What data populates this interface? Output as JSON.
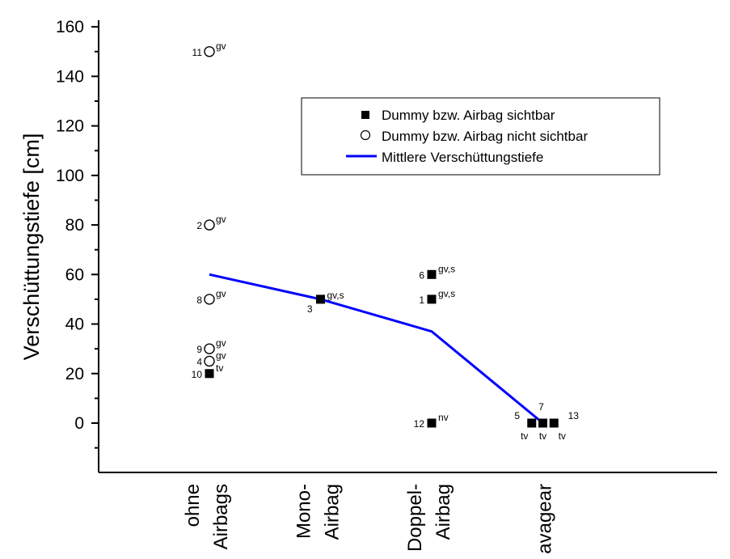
{
  "chart_data": {
    "type": "scatter",
    "ylabel": "Verschüttungstiefe [cm]",
    "xlabel": "",
    "ylim": [
      -20,
      160
    ],
    "yticks": [
      0,
      20,
      40,
      60,
      80,
      100,
      120,
      140,
      160
    ],
    "categories": [
      {
        "lines": [
          "ohne",
          "Airbags"
        ],
        "x": 1
      },
      {
        "lines": [
          "Mono-",
          "Airbag"
        ],
        "x": 2
      },
      {
        "lines": [
          "Doppel-",
          "Airbag"
        ],
        "x": 3
      },
      {
        "lines": [
          "avagear"
        ],
        "x": 4
      }
    ],
    "xlim": [
      0,
      6
    ],
    "legend": {
      "placement": "top-right",
      "entries": [
        {
          "marker": "square-filled",
          "label": "Dummy bzw. Airbag sichtbar"
        },
        {
          "marker": "circle-open",
          "label": "Dummy bzw. Airbag nicht sichtbar"
        },
        {
          "marker": "line",
          "label": "Mittlere Verschüttungstiefe"
        }
      ]
    },
    "series": [
      {
        "name": "Dummy bzw. Airbag sichtbar",
        "marker": "square-filled",
        "points": [
          {
            "x": 1,
            "y": 20,
            "id": "10",
            "tag": "tv"
          },
          {
            "x": 2,
            "y": 50,
            "id": "3",
            "tag": "gv,s"
          },
          {
            "x": 3,
            "y": 60,
            "id": "6",
            "tag": "gv,s"
          },
          {
            "x": 3,
            "y": 50,
            "id": "1",
            "tag": "gv,s"
          },
          {
            "x": 3,
            "y": 0,
            "id": "12",
            "tag": "nv"
          },
          {
            "x": 3.9,
            "y": 0,
            "id": "5",
            "tag": "tv"
          },
          {
            "x": 4.0,
            "y": 0,
            "id": "7",
            "tag": "tv"
          },
          {
            "x": 4.1,
            "y": 0,
            "id": "13",
            "tag": "tv"
          }
        ]
      },
      {
        "name": "Dummy bzw. Airbag nicht sichtbar",
        "marker": "circle-open",
        "points": [
          {
            "x": 1,
            "y": 150,
            "id": "11",
            "tag": "gv"
          },
          {
            "x": 1,
            "y": 80,
            "id": "2",
            "tag": "gv"
          },
          {
            "x": 1,
            "y": 50,
            "id": "8",
            "tag": "gv"
          },
          {
            "x": 1,
            "y": 30,
            "id": "9",
            "tag": "gv"
          },
          {
            "x": 1,
            "y": 25,
            "id": "4",
            "tag": "gv"
          }
        ]
      },
      {
        "name": "Mittlere Verschüttungstiefe",
        "marker": "line",
        "color": "#0000ff",
        "points": [
          {
            "x": 1,
            "y": 60
          },
          {
            "x": 2,
            "y": 50
          },
          {
            "x": 3,
            "y": 37
          },
          {
            "x": 4,
            "y": 0
          }
        ]
      }
    ]
  }
}
